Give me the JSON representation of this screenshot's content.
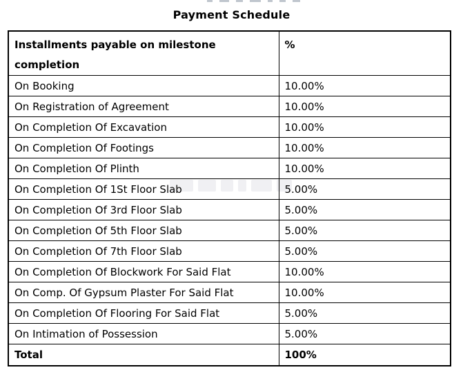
{
  "page": {
    "title": "Payment Schedule"
  },
  "table": {
    "header": {
      "col1_line1": "Installments payable on milestone",
      "col1_line2": "completion",
      "col2": "%"
    },
    "rows": [
      {
        "label": "On Booking",
        "value": "10.00%"
      },
      {
        "label": "On Registration of Agreement",
        "value": "10.00%"
      },
      {
        "label": "On Completion Of Excavation",
        "value": "10.00%"
      },
      {
        "label": "On Completion Of Footings",
        "value": "10.00%"
      },
      {
        "label": "On Completion Of Plinth",
        "value": "10.00%"
      },
      {
        "label": "On Completion Of 1St Floor Slab",
        "value": "5.00%"
      },
      {
        "label": "On Completion Of 3rd Floor Slab",
        "value": "5.00%"
      },
      {
        "label": "On Completion Of 5th Floor Slab",
        "value": "5.00%"
      },
      {
        "label": "On Completion Of 7th Floor Slab",
        "value": "5.00%"
      },
      {
        "label": "On Completion Of Blockwork For Said Flat",
        "value": "10.00%"
      },
      {
        "label": "On Comp. Of Gypsum Plaster For Said Flat",
        "value": "10.00%"
      },
      {
        "label": "On Completion Of Flooring For Said Flat",
        "value": "5.00%"
      },
      {
        "label": "On Intimation of Possession",
        "value": "5.00%"
      }
    ],
    "total": {
      "label": "Total",
      "value": "100%"
    }
  },
  "colors": {
    "background": "#ffffff",
    "text": "#000000",
    "border": "#000000"
  }
}
